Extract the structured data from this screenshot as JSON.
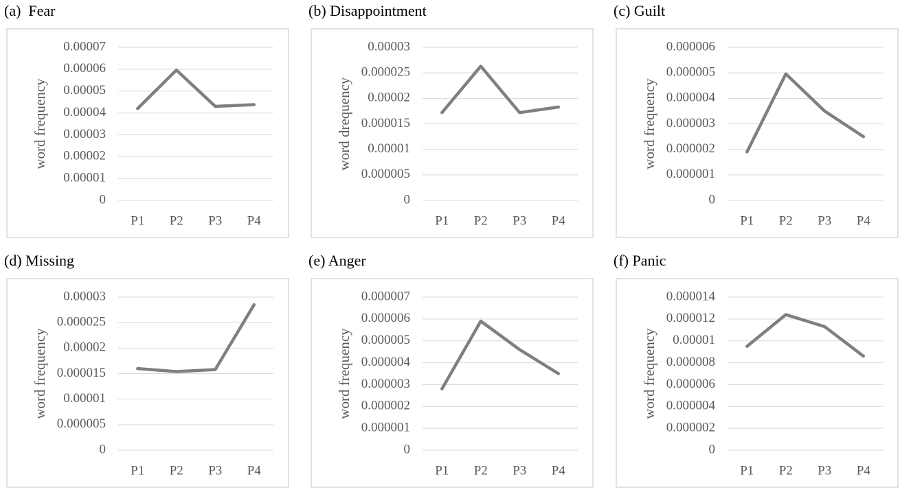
{
  "chart_data": [
    {
      "type": "line",
      "title": "(a)  Fear",
      "y_label": "word frequency",
      "categories": [
        "P1",
        "P2",
        "P3",
        "P4"
      ],
      "values": [
        4.2e-05,
        5.96e-05,
        4.3e-05,
        4.38e-05
      ],
      "color": "#7f7f7f",
      "ylim": [
        0,
        7e-05
      ],
      "yticks": [
        0,
        1e-05,
        2e-05,
        3e-05,
        4e-05,
        5e-05,
        6e-05,
        7e-05
      ],
      "grid": true
    },
    {
      "type": "line",
      "title": "(b) Disappointment",
      "y_label": "word drequency",
      "categories": [
        "P1",
        "P2",
        "P3",
        "P4"
      ],
      "values": [
        1.72e-05,
        2.63e-05,
        1.72e-05,
        1.83e-05
      ],
      "color": "#7f7f7f",
      "ylim": [
        0,
        3e-05
      ],
      "yticks": [
        0,
        5e-06,
        1e-05,
        1.5e-05,
        2e-05,
        2.5e-05,
        3e-05
      ],
      "grid": true
    },
    {
      "type": "line",
      "title": "(c) Guilt",
      "y_label": "word frequency",
      "categories": [
        "P1",
        "P2",
        "P3",
        "P4"
      ],
      "values": [
        1.9e-06,
        4.96e-06,
        3.5e-06,
        2.5e-06
      ],
      "color": "#7f7f7f",
      "ylim": [
        0,
        6e-06
      ],
      "yticks": [
        0,
        1e-06,
        2e-06,
        3e-06,
        4e-06,
        5e-06,
        6e-06
      ],
      "grid": true
    },
    {
      "type": "line",
      "title": "(d) Missing",
      "y_label": "word frequency",
      "categories": [
        "P1",
        "P2",
        "P3",
        "P4"
      ],
      "values": [
        1.6e-05,
        1.54e-05,
        1.58e-05,
        2.85e-05
      ],
      "color": "#7f7f7f",
      "ylim": [
        0,
        3e-05
      ],
      "yticks": [
        0,
        5e-06,
        1e-05,
        1.5e-05,
        2e-05,
        2.5e-05,
        3e-05
      ],
      "grid": true
    },
    {
      "type": "line",
      "title": "(e) Anger",
      "y_label": "word frequency",
      "categories": [
        "P1",
        "P2",
        "P3",
        "P4"
      ],
      "values": [
        2.8e-06,
        5.9e-06,
        4.6e-06,
        3.5e-06
      ],
      "color": "#7f7f7f",
      "ylim": [
        0,
        7e-06
      ],
      "yticks": [
        0,
        1e-06,
        2e-06,
        3e-06,
        4e-06,
        5e-06,
        6e-06,
        7e-06
      ],
      "grid": true
    },
    {
      "type": "line",
      "title": "(f) Panic",
      "y_label": "word frequency",
      "categories": [
        "P1",
        "P2",
        "P3",
        "P4"
      ],
      "values": [
        9.5e-06,
        1.24e-05,
        1.13e-05,
        8.6e-06
      ],
      "color": "#7f7f7f",
      "ylim": [
        0,
        1.4e-05
      ],
      "yticks": [
        0,
        2e-06,
        4e-06,
        6e-06,
        8e-06,
        1e-05,
        1.2e-05,
        1.4e-05
      ],
      "grid": true
    }
  ]
}
